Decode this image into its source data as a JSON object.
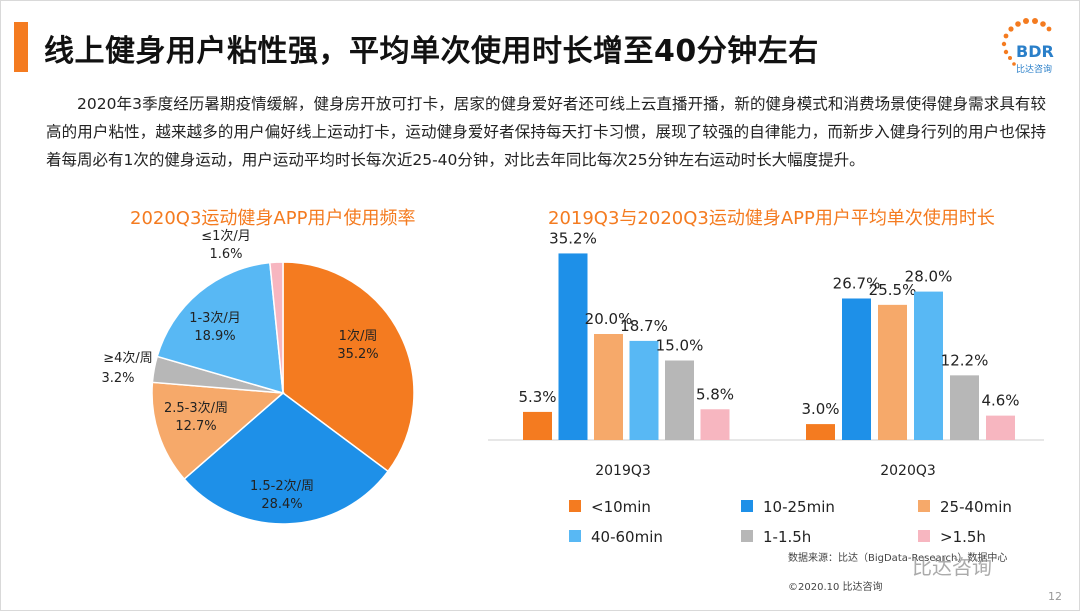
{
  "header": {
    "title": "线上健身用户粘性强，平均单次使用时长增至40分钟左右",
    "logo_text": "BDR",
    "logo_sub": "比达咨询"
  },
  "intro_text": "2020年3季度经历暑期疫情缓解，健身房开放可打卡，居家的健身爱好者还可线上云直播开播，新的健身模式和消费场景使得健身需求具有较高的用户粘性，越来越多的用户偏好线上运动打卡，运动健身爱好者保持每天打卡习惯，展现了较强的自律能力，而新步入健身行列的用户也保持着每周必有1次的健身运动，用户运动平均时长每次近25-40分钟，对比去年同比每次25分钟左右运动时长大幅度提升。",
  "colors": {
    "accent": "#f47b20",
    "blue": "#1e90e8",
    "light_orange": "#f6a96a",
    "light_blue": "#58b8f4",
    "gray": "#b7b7b7",
    "pink": "#f7b6c0"
  },
  "chart_data": [
    {
      "type": "pie",
      "title": "2020Q3运动健身APP用户使用频率",
      "slices": [
        {
          "label": "1次/周",
          "value": 35.2,
          "value_label": "35.2%",
          "color": "#f47b20"
        },
        {
          "label": "1.5-2次/周",
          "value": 28.4,
          "value_label": "28.4%",
          "color": "#1e90e8"
        },
        {
          "label": "2.5-3次/周",
          "value": 12.7,
          "value_label": "12.7%",
          "color": "#f6a96a"
        },
        {
          "label": "≥4次/周",
          "value": 3.2,
          "value_label": "3.2%",
          "color": "#b7b7b7"
        },
        {
          "label": "1-3次/月",
          "value": 18.9,
          "value_label": "18.9%",
          "color": "#58b8f4"
        },
        {
          "label": "≤1次/月",
          "value": 1.6,
          "value_label": "1.6%",
          "color": "#f7b6c0"
        }
      ]
    },
    {
      "type": "bar",
      "title": "2019Q3与2020Q3运动健身APP用户平均单次使用时长",
      "categories": [
        "2019Q3",
        "2020Q3"
      ],
      "ylim": [
        0,
        40
      ],
      "series": [
        {
          "name": "<10min",
          "color": "#f47b20",
          "values": [
            5.3,
            3.0
          ],
          "labels": [
            "5.3%",
            "3.0%"
          ]
        },
        {
          "name": "10-25min",
          "color": "#1e90e8",
          "values": [
            35.2,
            26.7
          ],
          "labels": [
            "35.2%",
            "26.7%"
          ]
        },
        {
          "name": "25-40min",
          "color": "#f6a96a",
          "values": [
            20.0,
            25.5
          ],
          "labels": [
            "20.0%",
            "25.5%"
          ]
        },
        {
          "name": "40-60min",
          "color": "#58b8f4",
          "values": [
            18.7,
            28.0
          ],
          "labels": [
            "18.7%",
            "28.0%"
          ]
        },
        {
          "name": "1-1.5h",
          "color": "#b7b7b7",
          "values": [
            15.0,
            12.2
          ],
          "labels": [
            "15.0%",
            "12.2%"
          ]
        },
        {
          "name": ">1.5h",
          "color": "#f7b6c0",
          "values": [
            5.8,
            4.6
          ],
          "labels": [
            "5.8%",
            "4.6%"
          ]
        }
      ]
    }
  ],
  "footer": {
    "source": "数据来源：比达（BigData-Research）数据中心",
    "watermark": "比达咨询",
    "copyright": "©2020.10 比达咨询",
    "page": "12"
  }
}
